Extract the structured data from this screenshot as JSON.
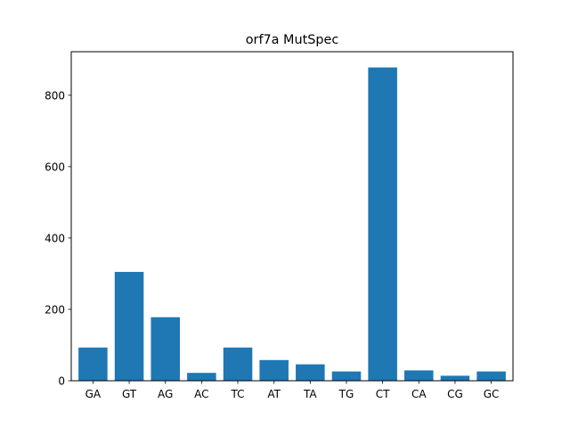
{
  "chart_data": {
    "type": "bar",
    "title": "orf7a MutSpec",
    "xlabel": "",
    "ylabel": "",
    "categories": [
      "GA",
      "GT",
      "AG",
      "AC",
      "TC",
      "AT",
      "TA",
      "TG",
      "CT",
      "CA",
      "CG",
      "GC"
    ],
    "values": [
      93,
      305,
      178,
      22,
      93,
      58,
      46,
      26,
      878,
      29,
      14,
      26
    ],
    "ylim": [
      0,
      922
    ],
    "yticks": [
      0,
      200,
      400,
      600,
      800
    ],
    "grid": false,
    "legend": "none",
    "bar_color": "#1f77b4"
  }
}
